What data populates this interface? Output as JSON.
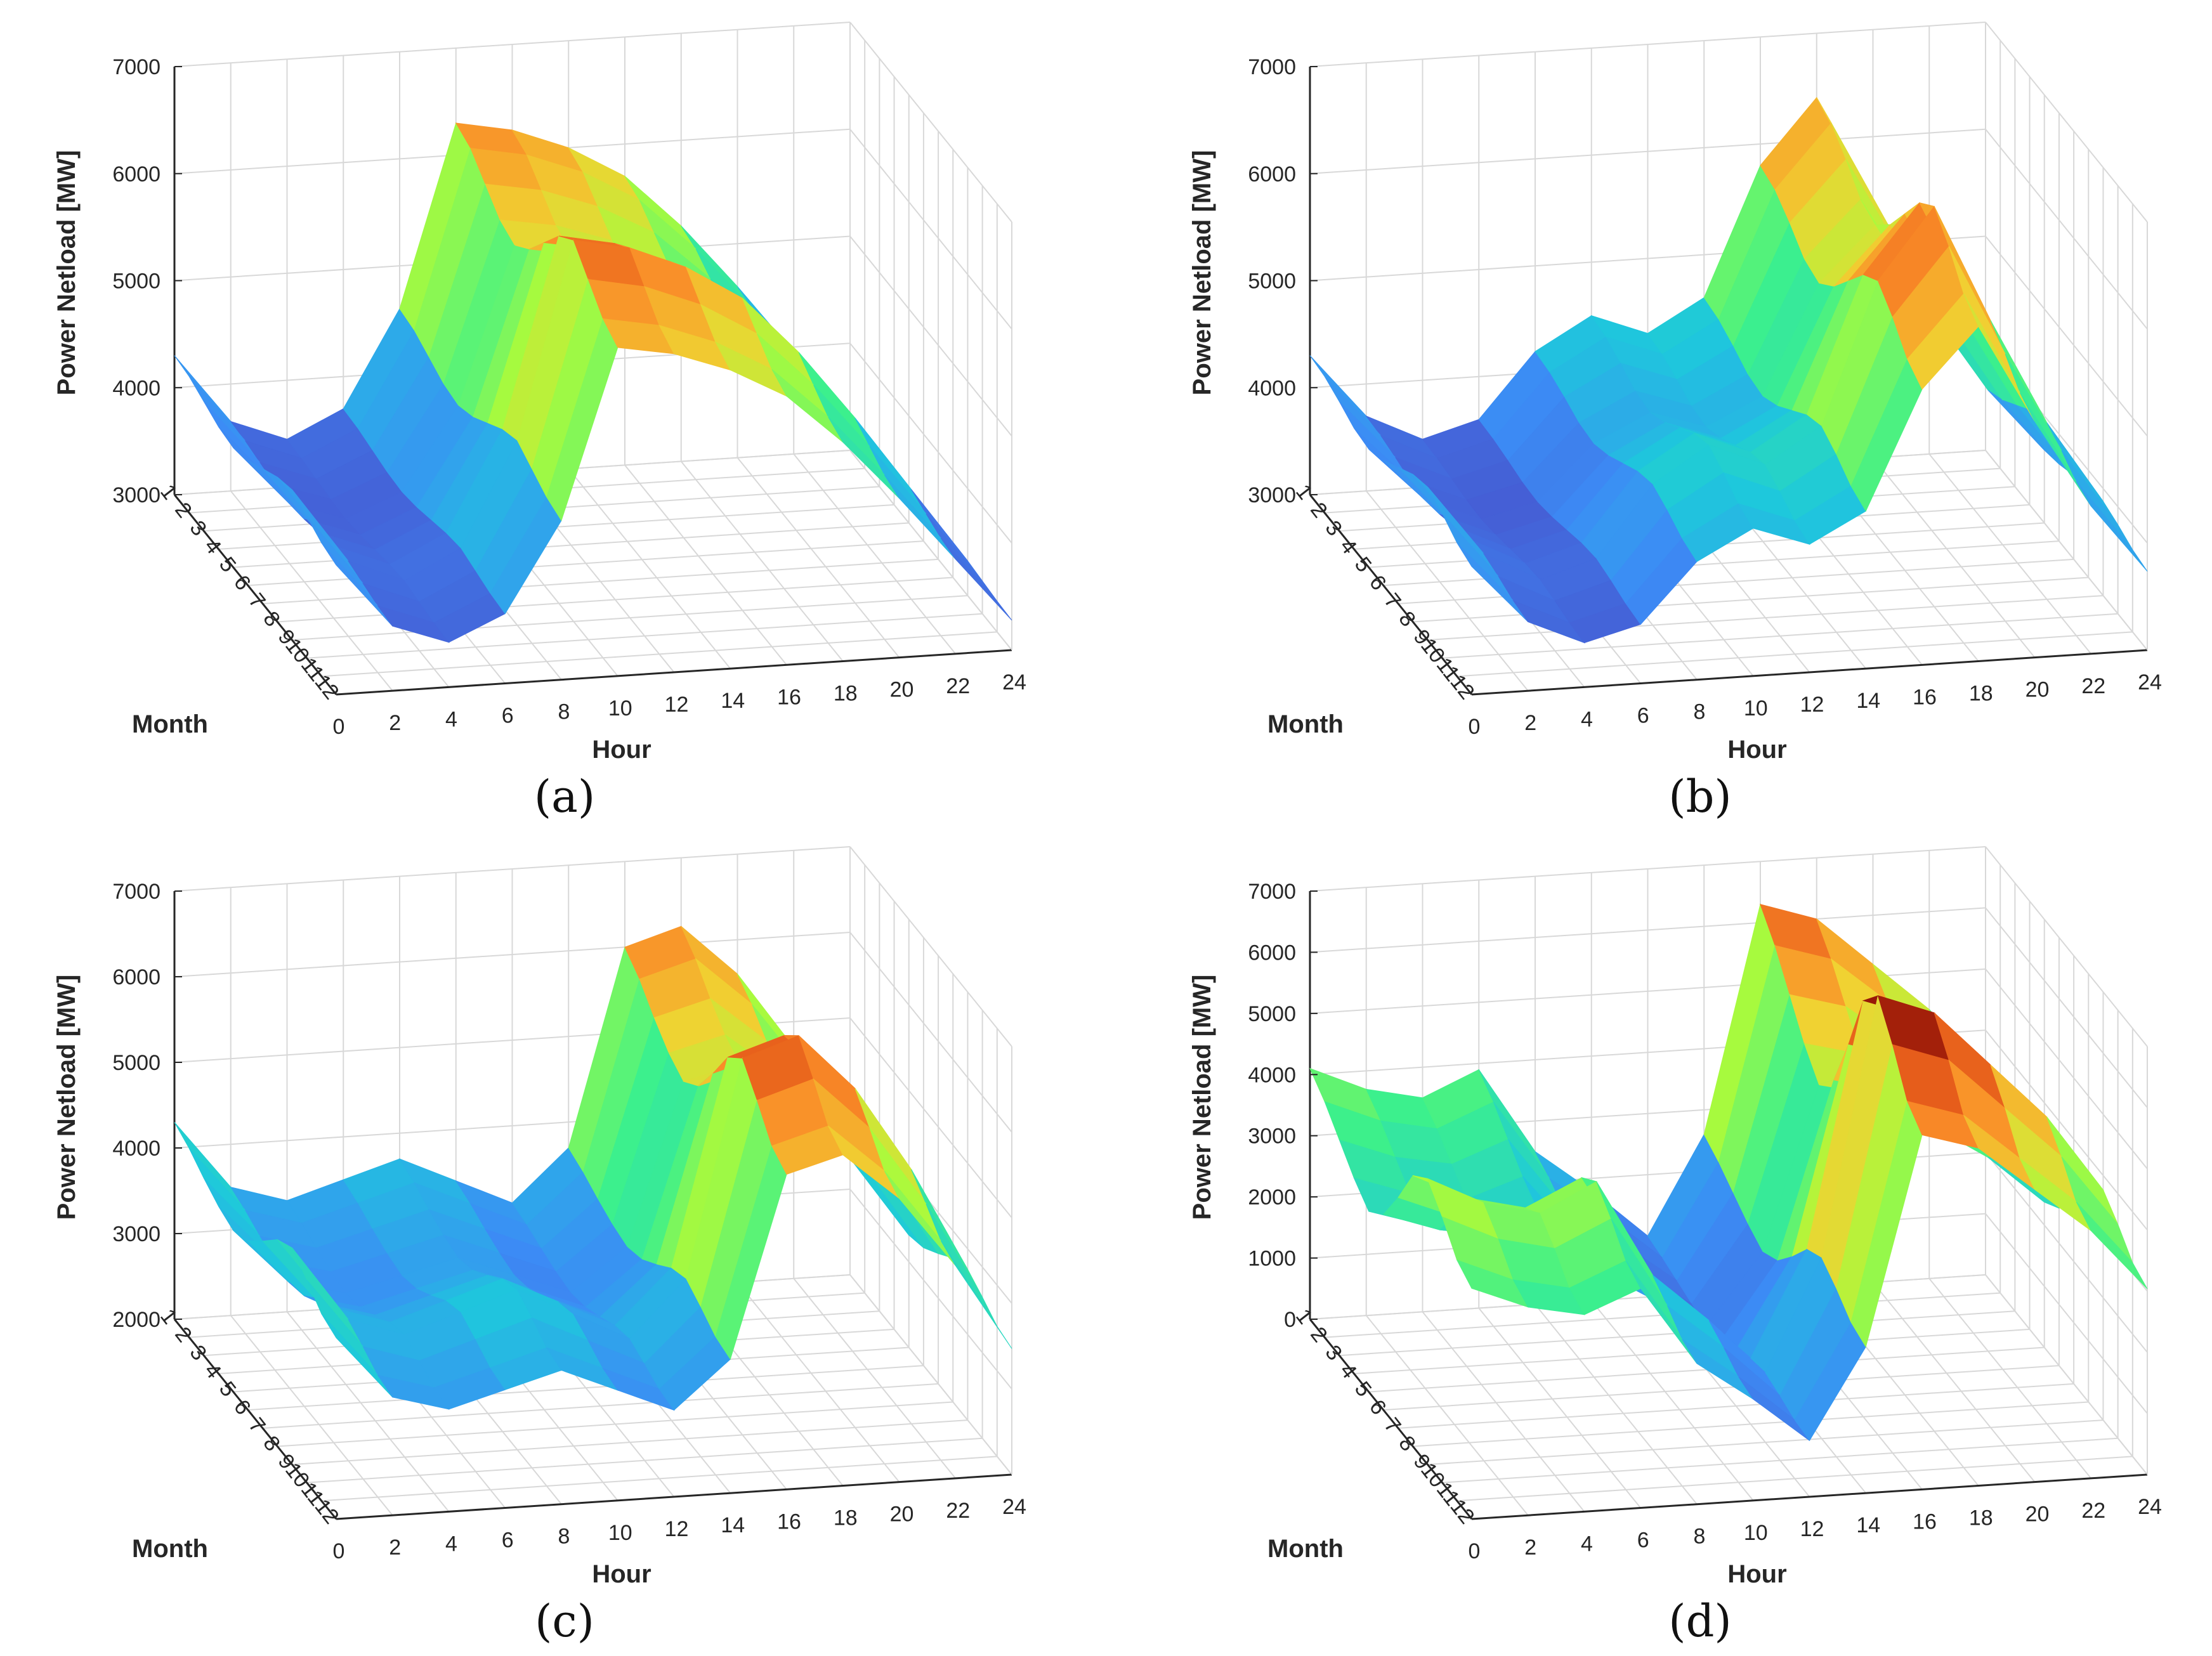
{
  "chart_data": [
    {
      "type": "surface",
      "label": "a",
      "xlabel": "Hour",
      "ylabel": "Month",
      "zlabel": "Power Netload [MW]",
      "zlim": [
        3000,
        7000
      ],
      "zticks": [
        "3000",
        "4000",
        "5000",
        "6000",
        "7000"
      ],
      "hours": [
        0,
        2,
        4,
        6,
        8,
        10,
        12,
        14,
        16,
        18,
        20,
        22,
        24
      ],
      "months": [
        1,
        2,
        3,
        4,
        5,
        6,
        7,
        8,
        9,
        10,
        11,
        12
      ],
      "xticks": [
        "0",
        "2",
        "4",
        "6",
        "8",
        "10",
        "12",
        "14",
        "16",
        "18",
        "20",
        "22",
        "24"
      ],
      "yticks": [
        "1",
        "2",
        "3",
        "4",
        "5",
        "6",
        "7",
        "8",
        "9",
        "10",
        "11",
        "12"
      ],
      "hour_profile": [
        4300,
        3650,
        3450,
        3700,
        4600,
        6300,
        6200,
        6000,
        5700,
        5200,
        4600,
        3950,
        3300
      ],
      "month_factor": [
        1.0,
        0.98,
        0.93,
        0.88,
        0.86,
        0.9,
        0.97,
        1.04,
        1.08,
        1.02,
        0.96,
        0.93
      ]
    },
    {
      "type": "surface",
      "label": "b",
      "xlabel": "Hour",
      "ylabel": "Month",
      "zlabel": "Power Netload [MW]",
      "zlim": [
        3000,
        7000
      ],
      "zticks": [
        "3000",
        "4000",
        "5000",
        "6000",
        "7000"
      ],
      "hours": [
        0,
        2,
        4,
        6,
        8,
        10,
        12,
        14,
        16,
        18,
        20,
        22,
        24
      ],
      "months": [
        1,
        2,
        3,
        4,
        5,
        6,
        7,
        8,
        9,
        10,
        11,
        12
      ],
      "xticks": [
        "0",
        "2",
        "4",
        "6",
        "8",
        "10",
        "12",
        "14",
        "16",
        "18",
        "20",
        "22",
        "24"
      ],
      "yticks": [
        "1",
        "2",
        "3",
        "4",
        "5",
        "6",
        "7",
        "8",
        "9",
        "10",
        "11",
        "12"
      ],
      "hour_profile": [
        4300,
        3700,
        3450,
        3600,
        4200,
        4500,
        4300,
        4600,
        5800,
        6400,
        5400,
        4500,
        3800
      ],
      "month_factor": [
        1.0,
        0.98,
        0.93,
        0.87,
        0.85,
        0.9,
        0.98,
        1.06,
        1.1,
        1.04,
        0.96,
        0.92
      ]
    },
    {
      "type": "surface",
      "label": "c",
      "xlabel": "Hour",
      "ylabel": "Month",
      "zlabel": "Power Netload [MW]",
      "zlim": [
        2000,
        7000
      ],
      "zticks": [
        "2000",
        "3000",
        "4000",
        "5000",
        "6000",
        "7000"
      ],
      "hours": [
        0,
        2,
        4,
        6,
        8,
        10,
        12,
        14,
        16,
        18,
        20,
        22,
        24
      ],
      "months": [
        1,
        2,
        3,
        4,
        5,
        6,
        7,
        8,
        9,
        10,
        11,
        12
      ],
      "xticks": [
        "0",
        "2",
        "4",
        "6",
        "8",
        "10",
        "12",
        "14",
        "16",
        "18",
        "20",
        "22",
        "24"
      ],
      "yticks": [
        "1",
        "2",
        "3",
        "4",
        "5",
        "6",
        "7",
        "8",
        "9",
        "10",
        "11",
        "12"
      ],
      "hour_profile": [
        4300,
        3500,
        3300,
        3500,
        3700,
        3400,
        3100,
        3700,
        6000,
        6200,
        5600,
        4700,
        3600
      ],
      "month_factor": [
        1.0,
        0.96,
        0.9,
        0.85,
        0.82,
        0.86,
        0.95,
        1.05,
        1.1,
        1.03,
        0.95,
        0.92
      ]
    },
    {
      "type": "surface",
      "label": "d",
      "xlabel": "Hour",
      "ylabel": "Month",
      "zlabel": "Power Netload [MW]",
      "zlim": [
        0,
        7000
      ],
      "zticks": [
        "0",
        "1000",
        "2000",
        "3000",
        "4000",
        "5000",
        "6000",
        "7000"
      ],
      "hours": [
        0,
        2,
        4,
        6,
        8,
        10,
        12,
        14,
        16,
        18,
        20,
        22,
        24
      ],
      "months": [
        1,
        2,
        3,
        4,
        5,
        6,
        7,
        8,
        9,
        10,
        11,
        12
      ],
      "xticks": [
        "0",
        "2",
        "4",
        "6",
        "8",
        "10",
        "12",
        "14",
        "16",
        "18",
        "20",
        "22",
        "24"
      ],
      "yticks": [
        "1",
        "2",
        "3",
        "4",
        "5",
        "6",
        "7",
        "8",
        "9",
        "10",
        "11",
        "12"
      ],
      "hour_profile": [
        4100,
        3700,
        3500,
        3900,
        2500,
        1800,
        1000,
        2600,
        6300,
        6000,
        5200,
        4400,
        3300
      ],
      "month_factor": [
        1.0,
        0.94,
        0.86,
        0.78,
        0.72,
        0.78,
        0.92,
        1.08,
        1.14,
        1.06,
        0.96,
        0.92
      ]
    }
  ],
  "captions": [
    "(a)",
    "(b)",
    "(c)",
    "(d)"
  ]
}
